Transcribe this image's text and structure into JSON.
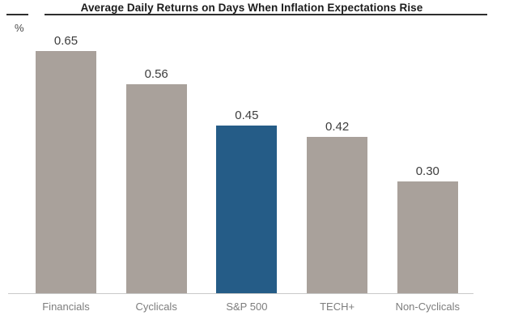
{
  "header": {
    "title": "Average Daily Returns on Days When Inflation Expectations Rise"
  },
  "axis": {
    "unit_label": "%"
  },
  "chart_data": {
    "type": "bar",
    "title": "Average Daily Returns on Days When Inflation Expectations Rise",
    "categories": [
      "Financials",
      "Cyclicals",
      "S&P 500",
      "TECH+",
      "Non-Cyclicals"
    ],
    "values": [
      0.65,
      0.56,
      0.45,
      0.42,
      0.3
    ],
    "value_labels": [
      "0.65",
      "0.56",
      "0.45",
      "0.42",
      "0.30"
    ],
    "xlabel": "",
    "ylabel": "%",
    "ylim": [
      0,
      0.7
    ],
    "grid": false,
    "legend": "none",
    "highlight_index": 2,
    "colors": {
      "bar_default": "#a9a19b",
      "bar_highlight": "#255c87",
      "title_text": "#1c1c1c",
      "value_text": "#3d3d3d",
      "category_text": "#7d7d7d",
      "baseline": "#c9c9c9"
    }
  }
}
